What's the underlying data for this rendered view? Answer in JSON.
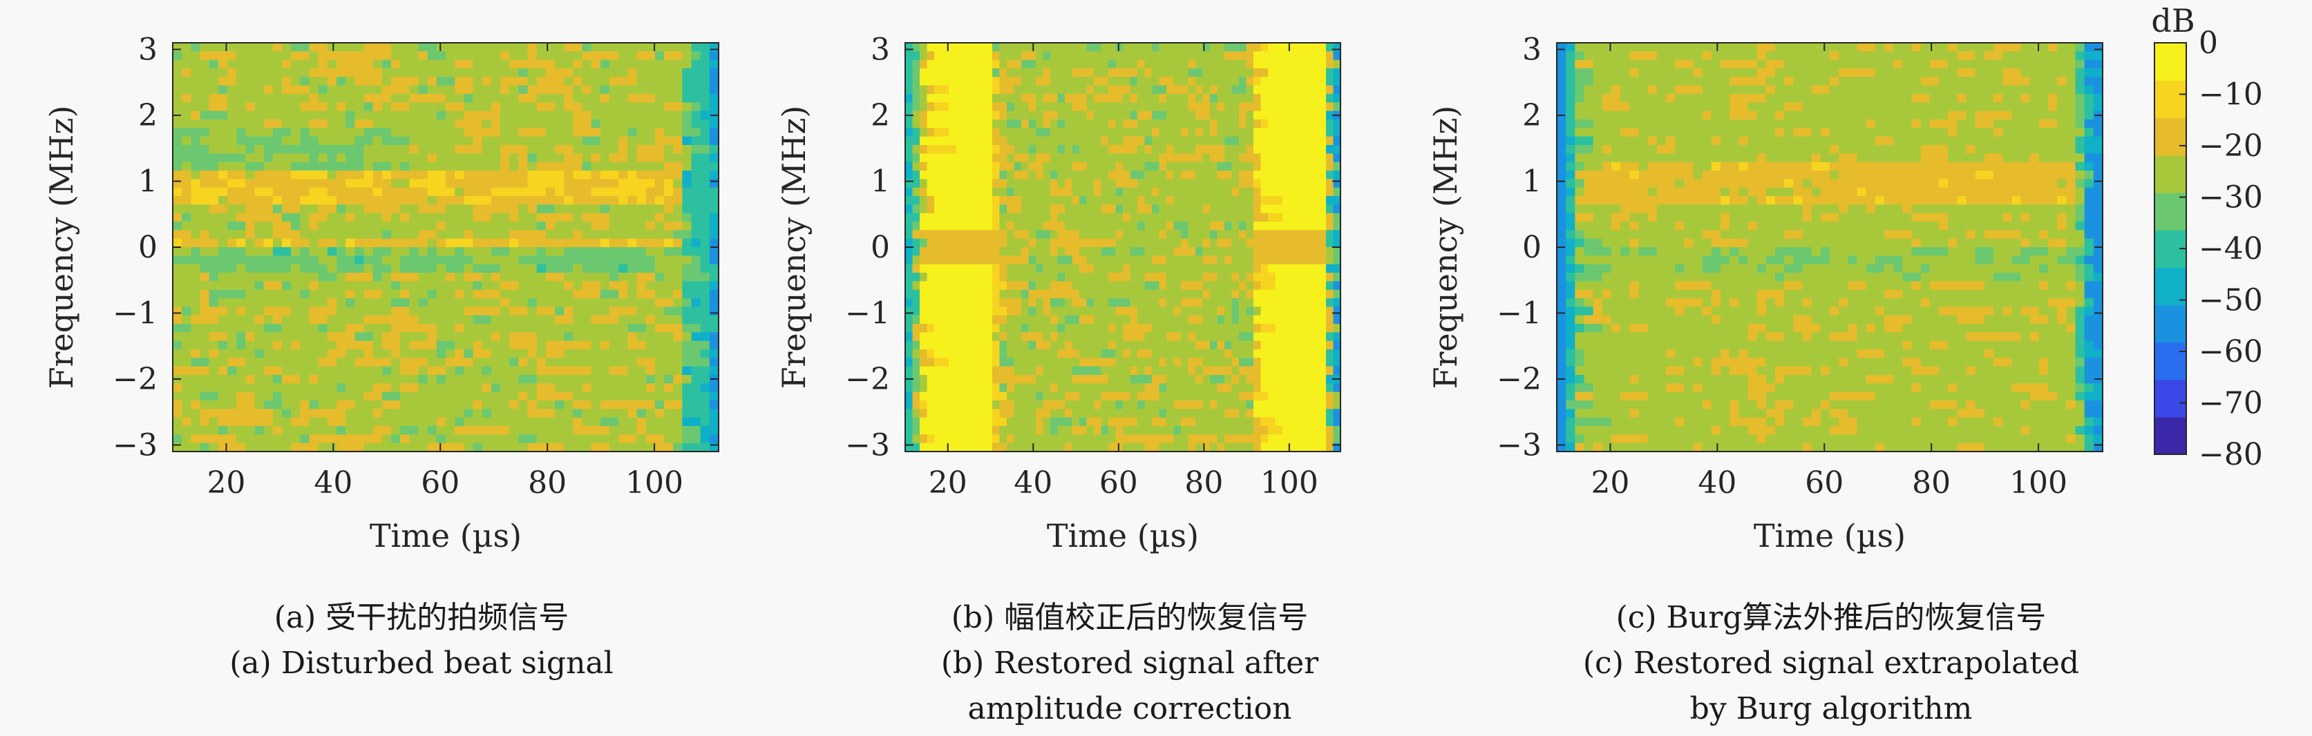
{
  "chart_data": [
    {
      "type": "heatmap",
      "panel": "a",
      "xlabel": "Time (µs)",
      "ylabel": "Frequency (MHz)",
      "xlim": [
        10,
        112
      ],
      "ylim": [
        -3.1,
        3.1
      ],
      "xticks": [
        20,
        40,
        60,
        80,
        100
      ],
      "yticks": [
        -3,
        -2,
        -1,
        0,
        1,
        2,
        3
      ],
      "grid": false,
      "caption_cn": "(a) 受干扰的拍频信号",
      "caption_en": [
        "(a) Disturbed beat signal"
      ]
    },
    {
      "type": "heatmap",
      "panel": "b",
      "xlabel": "Time (µs)",
      "ylabel": "Frequency (MHz)",
      "xlim": [
        10,
        112
      ],
      "ylim": [
        -3.1,
        3.1
      ],
      "xticks": [
        20,
        40,
        60,
        80,
        100
      ],
      "yticks": [
        -3,
        -2,
        -1,
        0,
        1,
        2,
        3
      ],
      "grid": false,
      "caption_cn": "(b) 幅值校正后的恢复信号",
      "caption_en": [
        "(b) Restored signal after",
        "amplitude correction"
      ]
    },
    {
      "type": "heatmap",
      "panel": "c",
      "xlabel": "Time (µs)",
      "ylabel": "Frequency (MHz)",
      "xlim": [
        10,
        112
      ],
      "ylim": [
        -3.1,
        3.1
      ],
      "xticks": [
        20,
        40,
        60,
        80,
        100
      ],
      "yticks": [
        -3,
        -2,
        -1,
        0,
        1,
        2,
        3
      ],
      "grid": false,
      "caption_cn": "(c) Burg算法外推后的恢复信号",
      "caption_en": [
        "(c) Restored signal extrapolated",
        "by Burg algorithm"
      ]
    }
  ],
  "colorbar": {
    "label": "dB",
    "ticks": [
      0,
      -10,
      -20,
      -30,
      -40,
      -50,
      -60,
      -70,
      -80
    ],
    "range": [
      -80,
      0
    ],
    "colors": [
      "#3b28a8",
      "#3a48e8",
      "#2a6ef0",
      "#1a92e0",
      "#0fb0c8",
      "#2cc0a0",
      "#6cc870",
      "#a8c83c",
      "#e6bb2c",
      "#f6d420",
      "#f6f01c"
    ]
  }
}
